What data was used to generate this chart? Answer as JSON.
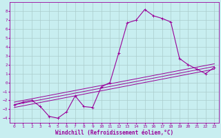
{
  "xlabel": "Windchill (Refroidissement éolien,°C)",
  "background_color": "#c8eef0",
  "line_color": "#990099",
  "grid_color": "#aacccc",
  "xlim": [
    -0.5,
    23.5
  ],
  "ylim": [
    -4.5,
    9.0
  ],
  "xticks": [
    0,
    1,
    2,
    3,
    4,
    5,
    6,
    7,
    8,
    9,
    10,
    11,
    12,
    13,
    14,
    15,
    16,
    17,
    18,
    19,
    20,
    21,
    22,
    23
  ],
  "yticks": [
    -4,
    -3,
    -2,
    -1,
    0,
    1,
    2,
    3,
    4,
    5,
    6,
    7,
    8
  ],
  "scatter_x": [
    0,
    1,
    2,
    3,
    4,
    5,
    6,
    7,
    8,
    9,
    10,
    11,
    12,
    13,
    14,
    15,
    16,
    17,
    18,
    19,
    20,
    21,
    22,
    23
  ],
  "scatter_y": [
    -2.5,
    -2.2,
    -2.0,
    -2.7,
    -3.8,
    -4.0,
    -3.3,
    -1.5,
    -2.7,
    -2.8,
    -0.5,
    0.0,
    3.3,
    6.7,
    7.0,
    8.2,
    7.5,
    7.2,
    6.8,
    2.7,
    2.0,
    1.5,
    1.0,
    1.7
  ],
  "reg_lines": [
    {
      "x0": 0,
      "y0": -2.8,
      "x1": 23,
      "y1": 1.5
    },
    {
      "x0": 0,
      "y0": -2.5,
      "x1": 23,
      "y1": 1.8
    },
    {
      "x0": 0,
      "y0": -2.2,
      "x1": 23,
      "y1": 2.1
    }
  ],
  "tick_fontsize": 4.5,
  "xlabel_fontsize": 5.5
}
